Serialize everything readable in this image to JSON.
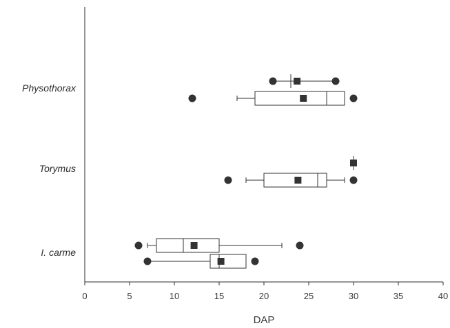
{
  "chart_data": {
    "type": "boxplot",
    "title": "",
    "xlabel": "DAP",
    "ylabel": "",
    "xlim": [
      0,
      40
    ],
    "xticks": [
      0,
      5,
      10,
      15,
      20,
      25,
      30,
      35,
      40
    ],
    "categories": [
      "Physothorax",
      "Torymus",
      "I. carme"
    ],
    "boxes": [
      {
        "group": "Physothorax",
        "lower_whisker": 21,
        "q1": 23,
        "median": 23,
        "q3": 23,
        "upper_whisker": 28,
        "mean": 23.7,
        "outliers": [
          21,
          28
        ]
      },
      {
        "group": "Physothorax",
        "lower_whisker": 17,
        "q1": 19,
        "median": 27,
        "q3": 29,
        "upper_whisker": 29,
        "mean": 24.4,
        "outliers": [
          12,
          30
        ]
      },
      {
        "group": "Torymus",
        "lower_whisker": 30,
        "q1": 30,
        "median": 30,
        "q3": 30,
        "upper_whisker": 30,
        "mean": 30,
        "outliers": []
      },
      {
        "group": "Torymus",
        "lower_whisker": 18,
        "q1": 20,
        "median": 26,
        "q3": 27,
        "upper_whisker": 29,
        "mean": 23.8,
        "outliers": [
          16,
          30
        ]
      },
      {
        "group": "I. carme",
        "lower_whisker": 7,
        "q1": 8,
        "median": 11,
        "q3": 15,
        "upper_whisker": 22,
        "mean": 12.2,
        "outliers": [
          6,
          24
        ]
      },
      {
        "group": "I. carme",
        "lower_whisker": 7,
        "q1": 14,
        "median": 15,
        "q3": 18,
        "upper_whisker": 18,
        "mean": 15.2,
        "outliers": [
          7,
          19
        ]
      }
    ],
    "grid": false,
    "legend": "none"
  }
}
